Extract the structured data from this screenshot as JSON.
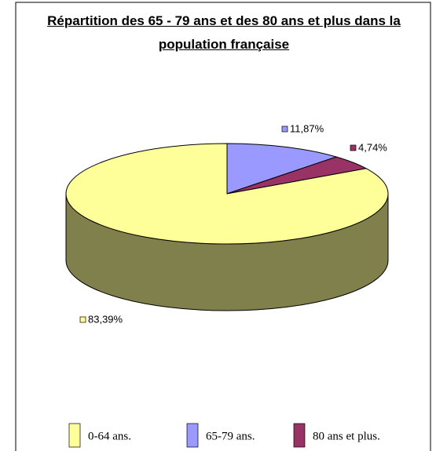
{
  "chart_data": {
    "type": "pie",
    "title": "Répartition des 65 - 79 ans et des 80 ans et plus dans la population française",
    "categories": [
      "0-64 ans.",
      "65-79 ans.",
      "80 ans et plus."
    ],
    "values": [
      83.39,
      11.87,
      4.74
    ],
    "value_labels": [
      "83,39%",
      "11,87%",
      "4,74%"
    ],
    "colors": [
      "#ffff99",
      "#9999ff",
      "#993366"
    ],
    "legend": "bottom"
  }
}
